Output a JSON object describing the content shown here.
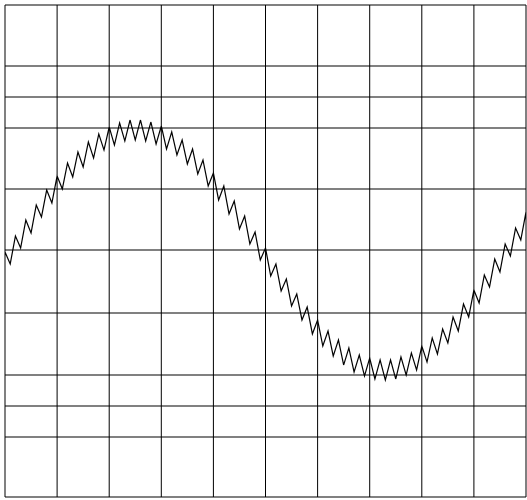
{
  "chart_data": {
    "type": "line",
    "x": [
      0,
      0.1,
      0.2,
      0.3,
      0.4,
      0.5,
      0.6,
      0.7,
      0.8,
      0.9,
      1,
      1.1,
      1.2,
      1.3,
      1.4,
      1.5,
      1.6,
      1.7,
      1.8,
      1.9,
      2,
      2.1,
      2.2,
      2.3,
      2.4,
      2.5,
      2.6,
      2.7,
      2.8,
      2.9,
      3,
      3.1,
      3.2,
      3.3,
      3.4,
      3.5,
      3.6,
      3.7,
      3.8,
      3.9,
      4,
      4.1,
      4.2,
      4.3,
      4.4,
      4.5,
      4.6,
      4.7,
      4.8,
      4.9,
      5,
      5.1,
      5.2,
      5.3,
      5.4,
      5.5,
      5.6,
      5.7,
      5.8,
      5.9,
      6,
      6.1,
      6.2,
      6.3,
      6.4,
      6.5,
      6.6,
      6.7,
      6.8,
      6.9,
      7,
      7.1,
      7.2,
      7.3,
      7.4,
      7.5,
      7.6,
      7.7,
      7.8,
      7.9,
      8,
      8.1,
      8.2,
      8.3,
      8.4,
      8.5,
      8.6,
      8.7,
      8.8,
      8.9,
      9,
      9.1,
      9.2,
      9.3,
      9.4,
      9.5,
      9.6,
      9.7,
      9.8,
      9.9,
      10
    ],
    "series": [
      {
        "color": "#000000",
        "values": [
          245,
          233,
          261,
          249,
          277,
          264,
          292,
          280,
          307,
          294,
          321,
          308,
          334,
          320,
          345,
          330,
          355,
          339,
          363,
          347,
          370,
          352,
          374,
          356,
          377,
          357,
          377,
          356,
          375,
          353,
          371,
          348,
          365,
          342,
          357,
          333,
          348,
          323,
          337,
          311,
          324,
          297,
          311,
          283,
          296,
          268,
          281,
          253,
          265,
          237,
          249,
          221,
          233,
          206,
          218,
          191,
          203,
          177,
          190,
          163,
          177,
          151,
          166,
          141,
          157,
          132,
          149,
          125,
          142,
          121,
          139,
          118,
          137,
          117,
          137,
          118,
          140,
          122,
          144,
          127,
          151,
          135,
          159,
          143,
          168,
          154,
          180,
          166,
          193,
          180,
          207,
          194,
          222,
          210,
          238,
          225,
          253,
          241,
          269,
          257,
          285
        ]
      }
    ],
    "xlim": [
      0,
      10
    ],
    "xticks": [
      0,
      1,
      2,
      3,
      4,
      5,
      6,
      7,
      8,
      9,
      10
    ],
    "ylim": [
      0,
      492
    ],
    "yticks": [
      0,
      60,
      91,
      122,
      184,
      247,
      308,
      369,
      400,
      431,
      492
    ],
    "grid": true
  }
}
